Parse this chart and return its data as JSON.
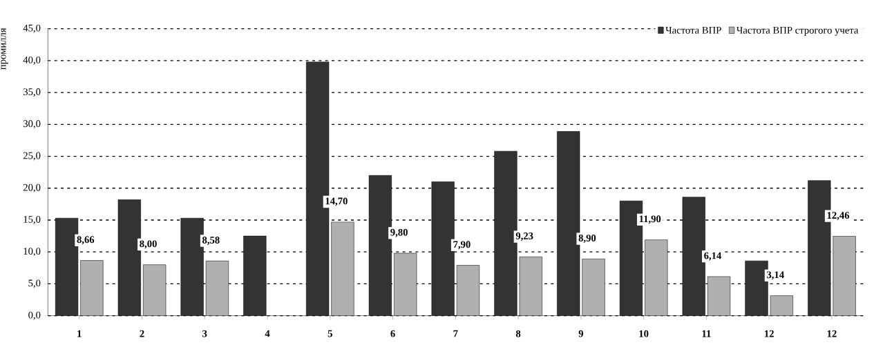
{
  "chart_data": {
    "type": "bar",
    "ylabel": "промилля",
    "categories": [
      "1",
      "2",
      "3",
      "4",
      "5",
      "6",
      "7",
      "8",
      "9",
      "10",
      "11",
      "12",
      "12"
    ],
    "series": [
      {
        "name": "Частота ВПР",
        "color": "#333333",
        "values": [
          15.3,
          18.2,
          15.3,
          12.5,
          39.8,
          22.0,
          21.0,
          25.8,
          28.9,
          18.0,
          18.6,
          8.6,
          21.2
        ]
      },
      {
        "name": "Частота ВПР строгого учета",
        "color": "#b0b0b0",
        "values": [
          8.66,
          8.0,
          8.58,
          null,
          14.7,
          9.8,
          7.9,
          9.23,
          8.9,
          11.9,
          6.14,
          3.14,
          12.46
        ],
        "value_labels": [
          "8,66",
          "8,00",
          "8,58",
          null,
          "14,70",
          "9,80",
          "7,90",
          "9,23",
          "8,90",
          "11,90",
          "6,14",
          "3,14",
          "12,46"
        ]
      }
    ],
    "ylim": [
      0,
      45
    ],
    "yticks": [
      {
        "value": 0,
        "label": "0,0"
      },
      {
        "value": 5,
        "label": "5,0"
      },
      {
        "value": 10,
        "label": "10,0"
      },
      {
        "value": 15,
        "label": "15,0"
      },
      {
        "value": 20,
        "label": "20,0"
      },
      {
        "value": 25,
        "label": "25,0"
      },
      {
        "value": 30,
        "label": "30,0"
      },
      {
        "value": 35,
        "label": "35,0"
      },
      {
        "value": 40,
        "label": "40,0"
      },
      {
        "value": 45,
        "label": "45,0"
      }
    ],
    "grid": "y",
    "legend": "top right"
  }
}
